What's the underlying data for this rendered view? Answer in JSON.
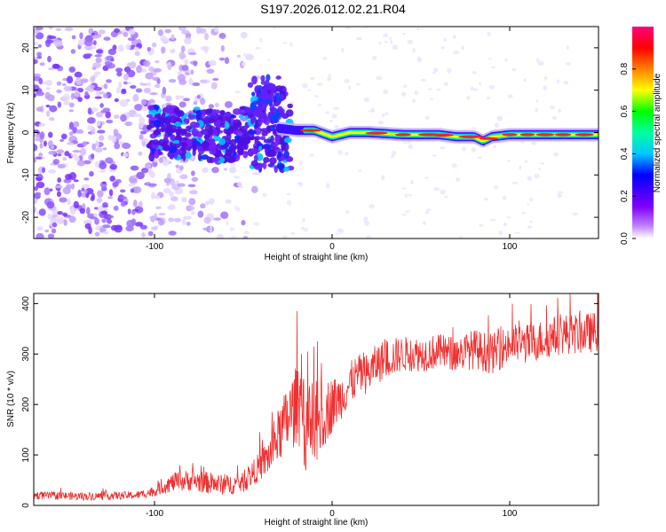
{
  "title": "S197.2026.012.02.21.R04",
  "chart_data": [
    {
      "type": "heatmap",
      "name": "spectrogram",
      "xlabel": "Height of straight line (km)",
      "ylabel": "Frequency (Hz)",
      "xlim": [
        -168,
        150
      ],
      "ylim": [
        -25,
        25
      ],
      "x_ticks": [
        -100,
        0,
        100
      ],
      "y_ticks": [
        20,
        10,
        0,
        -10,
        -20
      ],
      "colorbar": {
        "label": "Normalized spectral amplitude",
        "range": [
          0.0,
          1.0
        ],
        "ticks": [
          0.0,
          0.2,
          0.4,
          0.6,
          0.8
        ],
        "tick_labels": [
          "0.0",
          "0.2",
          "0.4",
          "0.6",
          "0.8"
        ],
        "colormap": [
          "#ffffff",
          "#8000ff",
          "#0000ff",
          "#00ffff",
          "#00ff00",
          "#ffff00",
          "#ff8000",
          "#ff0000",
          "#ff0080"
        ]
      },
      "signal_trace": {
        "description_free": true,
        "x": [
          -100,
          -80,
          -60,
          -40,
          -30,
          -20,
          -10,
          0,
          10,
          20,
          40,
          60,
          70,
          80,
          85,
          90,
          100,
          120,
          150
        ],
        "y": [
          0,
          0,
          -1,
          1,
          1,
          0.5,
          0.5,
          -1,
          0,
          0,
          -0.5,
          -0.5,
          -1,
          -1,
          -2,
          -1,
          -0.5,
          -0.5,
          -0.5
        ]
      },
      "noise_x_range": [
        -168,
        -60
      ]
    },
    {
      "type": "line",
      "name": "snr",
      "xlabel": "Height of straight line (km)",
      "ylabel": "SNR (10 * v/v)",
      "xlim": [
        -168,
        150
      ],
      "ylim": [
        0,
        420
      ],
      "x_ticks": [
        -100,
        0,
        100
      ],
      "y_ticks": [
        0,
        100,
        200,
        300,
        400
      ],
      "color": "#f03030",
      "x": [
        -168,
        -140,
        -110,
        -100,
        -90,
        -80,
        -70,
        -60,
        -50,
        -40,
        -35,
        -30,
        -25,
        -20,
        -15,
        -10,
        -5,
        0,
        5,
        10,
        15,
        20,
        25,
        30,
        40,
        50,
        60,
        70,
        80,
        90,
        100,
        110,
        120,
        130,
        140,
        150
      ],
      "values": [
        20,
        18,
        20,
        28,
        45,
        50,
        45,
        40,
        45,
        80,
        100,
        140,
        170,
        200,
        160,
        150,
        180,
        200,
        215,
        240,
        260,
        260,
        280,
        290,
        300,
        300,
        305,
        300,
        310,
        300,
        320,
        320,
        330,
        340,
        340,
        345
      ],
      "noise_amplitude": [
        8,
        8,
        8,
        10,
        18,
        22,
        22,
        20,
        20,
        30,
        40,
        55,
        70,
        80,
        90,
        95,
        70,
        55,
        45,
        45,
        40,
        40,
        40,
        40,
        35,
        35,
        35,
        35,
        40,
        40,
        40,
        40,
        40,
        40,
        40,
        40
      ]
    }
  ]
}
